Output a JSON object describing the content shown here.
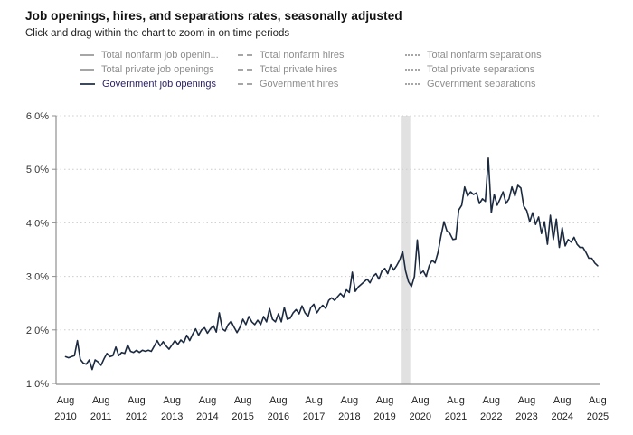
{
  "header": {
    "title": "Job openings, hires, and separations rates, seasonally adjusted",
    "subtitle": "Click and drag within the chart to zoom in on time periods"
  },
  "legend": {
    "inactive_color": "#8d8d8d",
    "active_color": "#2b1e63",
    "columns": [
      {
        "line_style": "solid",
        "items": [
          {
            "label": "Total nonfarm job openin...",
            "active": false
          },
          {
            "label": "Total private job openings",
            "active": false
          },
          {
            "label": "Government job openings",
            "active": true
          }
        ]
      },
      {
        "line_style": "dashed",
        "items": [
          {
            "label": "Total nonfarm hires",
            "active": false
          },
          {
            "label": "Total private hires",
            "active": false
          },
          {
            "label": "Government hires",
            "active": false
          }
        ]
      },
      {
        "line_style": "dotted",
        "items": [
          {
            "label": "Total nonfarm separations",
            "active": false
          },
          {
            "label": "Total private separations",
            "active": false
          },
          {
            "label": "Government separations",
            "active": false
          }
        ]
      }
    ]
  },
  "chart_data": {
    "type": "line",
    "title": "Job openings, hires, and separations rates, seasonally adjusted",
    "xlabel": "",
    "ylabel": "",
    "ylim": [
      1.0,
      6.0
    ],
    "grid": "dotted-horizontal",
    "y_ticks": [
      {
        "label": "6.0%",
        "value": 6.0
      },
      {
        "label": "5.0%",
        "value": 5.0
      },
      {
        "label": "4.0%",
        "value": 4.0
      },
      {
        "label": "3.0%",
        "value": 3.0
      },
      {
        "label": "2.0%",
        "value": 2.0
      },
      {
        "label": "1.0%",
        "value": 1.0
      }
    ],
    "x_ticks": [
      {
        "month": "Aug",
        "year": "2010"
      },
      {
        "month": "Aug",
        "year": "2011"
      },
      {
        "month": "Aug",
        "year": "2012"
      },
      {
        "month": "Aug",
        "year": "2013"
      },
      {
        "month": "Aug",
        "year": "2014"
      },
      {
        "month": "Aug",
        "year": "2015"
      },
      {
        "month": "Aug",
        "year": "2016"
      },
      {
        "month": "Aug",
        "year": "2017"
      },
      {
        "month": "Aug",
        "year": "2018"
      },
      {
        "month": "Aug",
        "year": "2019"
      },
      {
        "month": "Aug",
        "year": "2020"
      },
      {
        "month": "Aug",
        "year": "2021"
      },
      {
        "month": "Aug",
        "year": "2022"
      },
      {
        "month": "Aug",
        "year": "2023"
      },
      {
        "month": "Aug",
        "year": "2024"
      },
      {
        "month": "Aug",
        "year": "2025"
      }
    ],
    "recession_band": {
      "start": "2020-02",
      "end": "2020-04",
      "color": "#e1e1e1"
    },
    "series": [
      {
        "name": "Government job openings",
        "color": "#1c2a40",
        "frequency": "monthly",
        "x_start": "2010-08",
        "x_end": "2025-08",
        "unit": "percent",
        "values": [
          1.5,
          1.48,
          1.5,
          1.52,
          1.8,
          1.45,
          1.38,
          1.36,
          1.44,
          1.26,
          1.44,
          1.4,
          1.34,
          1.46,
          1.56,
          1.5,
          1.52,
          1.68,
          1.52,
          1.58,
          1.56,
          1.72,
          1.6,
          1.58,
          1.62,
          1.58,
          1.62,
          1.6,
          1.62,
          1.6,
          1.7,
          1.8,
          1.7,
          1.78,
          1.7,
          1.64,
          1.72,
          1.8,
          1.73,
          1.81,
          1.76,
          1.9,
          1.8,
          1.92,
          2.02,
          1.9,
          2.0,
          2.04,
          1.94,
          2.02,
          2.08,
          1.96,
          2.32,
          2.02,
          1.98,
          2.1,
          2.16,
          2.05,
          1.95,
          2.05,
          2.2,
          2.1,
          2.25,
          2.15,
          2.1,
          2.18,
          2.1,
          2.25,
          2.15,
          2.4,
          2.2,
          2.15,
          2.3,
          2.15,
          2.42,
          2.2,
          2.22,
          2.32,
          2.38,
          2.3,
          2.45,
          2.32,
          2.25,
          2.42,
          2.48,
          2.32,
          2.4,
          2.46,
          2.4,
          2.55,
          2.6,
          2.55,
          2.62,
          2.68,
          2.62,
          2.75,
          2.7,
          3.08,
          2.72,
          2.8,
          2.85,
          2.9,
          2.95,
          2.88,
          3.0,
          3.05,
          2.95,
          3.1,
          3.15,
          3.05,
          3.22,
          3.12,
          3.2,
          3.3,
          3.47,
          3.1,
          2.9,
          2.81,
          3.0,
          3.68,
          3.05,
          3.1,
          3.0,
          3.2,
          3.3,
          3.25,
          3.45,
          3.76,
          4.02,
          3.85,
          3.8,
          3.69,
          3.7,
          4.24,
          4.33,
          4.67,
          4.5,
          4.58,
          4.53,
          4.56,
          4.36,
          4.45,
          4.4,
          5.21,
          4.19,
          4.53,
          4.33,
          4.45,
          4.58,
          4.36,
          4.45,
          4.67,
          4.5,
          4.7,
          4.65,
          4.31,
          4.23,
          4.02,
          4.19,
          3.97,
          4.11,
          3.8,
          4.02,
          3.6,
          4.14,
          3.69,
          4.07,
          3.54,
          3.91,
          3.57,
          3.69,
          3.64,
          3.73,
          3.6,
          3.54,
          3.54,
          3.45,
          3.34,
          3.34,
          3.25,
          3.2
        ]
      }
    ],
    "colors": {
      "gridline": "#cccccc",
      "axis": "#8f8f8f",
      "band": "#e1e1e1",
      "line": "#1c2a40"
    }
  }
}
